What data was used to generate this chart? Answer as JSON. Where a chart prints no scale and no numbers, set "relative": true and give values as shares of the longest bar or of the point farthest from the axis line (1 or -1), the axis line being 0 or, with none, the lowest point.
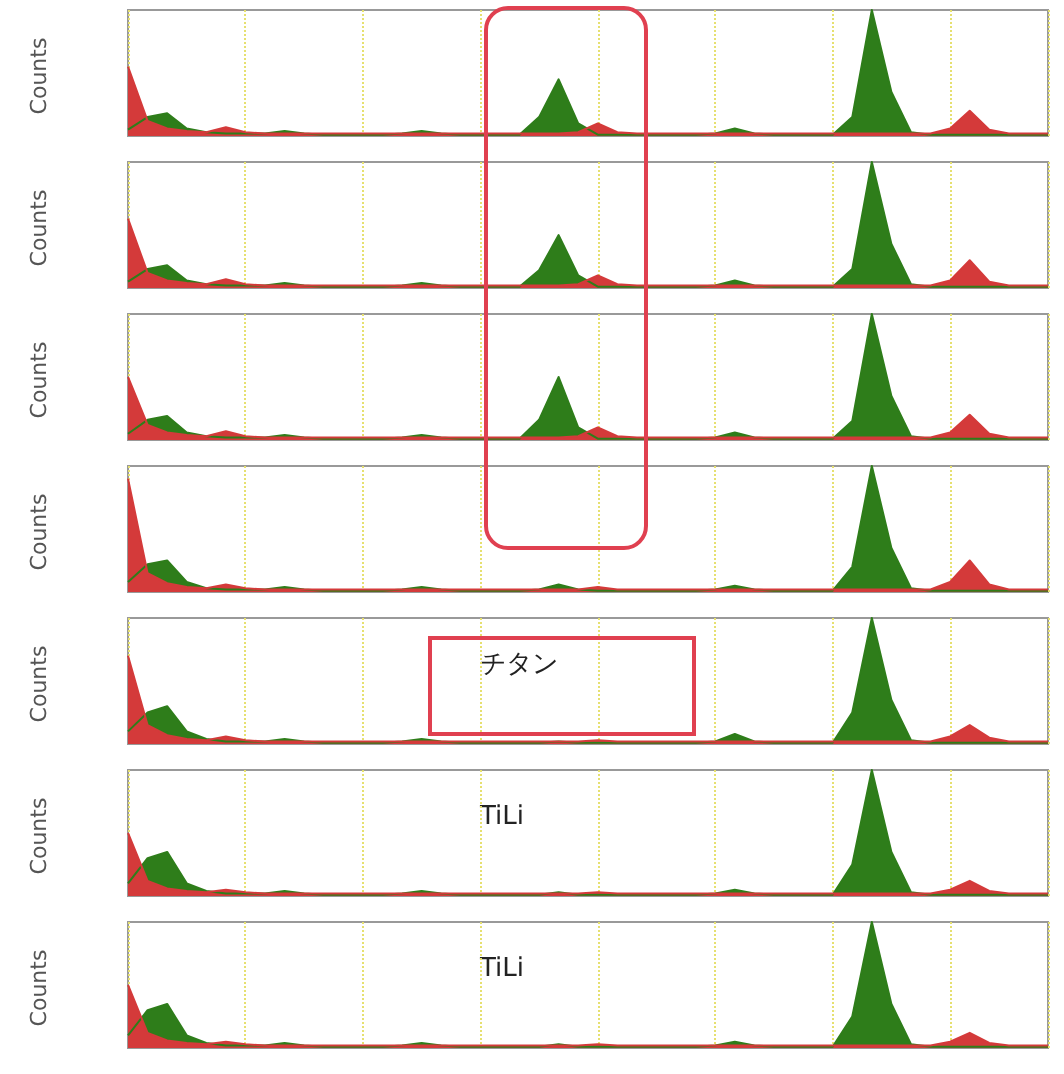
{
  "chart_data": [
    {
      "type": "area",
      "relative": true,
      "ylabel": "Counts",
      "grid": "x",
      "categories": [
        null,
        null,
        null,
        null,
        null,
        null,
        null,
        null,
        null,
        null,
        null,
        null,
        null,
        null,
        null,
        null,
        null,
        null,
        null,
        null,
        null,
        null,
        null,
        null,
        null,
        null,
        null,
        null,
        null,
        null,
        null,
        null,
        null,
        null,
        null,
        null,
        null,
        null,
        null,
        null,
        null,
        null,
        null,
        null,
        null,
        null,
        null,
        null
      ],
      "series": [
        {
          "color": "#2e7d1a",
          "values": [
            0.05,
            0.15,
            0.18,
            0.06,
            0.03,
            0.02,
            0.02,
            0.02,
            0.04,
            0.02,
            0.01,
            0.01,
            0.01,
            0.01,
            0.02,
            0.04,
            0.02,
            0.01,
            0.01,
            0.01,
            0.01,
            0.15,
            0.45,
            0.1,
            0.01,
            0.01,
            0.01,
            0.01,
            0.01,
            0.01,
            0.02,
            0.06,
            0.02,
            0.01,
            0.01,
            0.01,
            0.01,
            0.15,
            1,
            0.35,
            0.03,
            0.01,
            0.01,
            0.01,
            0.01,
            0.01,
            0.01,
            0.01
          ]
        },
        {
          "color": "#d43a3a",
          "values": [
            0.55,
            0.12,
            0.06,
            0.04,
            0.03,
            0.07,
            0.03,
            0.02,
            0.02,
            0.02,
            0.02,
            0.02,
            0.02,
            0.02,
            0.02,
            0.02,
            0.02,
            0.02,
            0.02,
            0.02,
            0.02,
            0.02,
            0.02,
            0.03,
            0.1,
            0.03,
            0.02,
            0.02,
            0.02,
            0.02,
            0.02,
            0.02,
            0.02,
            0.02,
            0.02,
            0.02,
            0.02,
            0.02,
            0.02,
            0.02,
            0.02,
            0.02,
            0.06,
            0.2,
            0.05,
            0.02,
            0.02,
            0.02
          ]
        }
      ]
    },
    {
      "type": "area",
      "relative": true,
      "ylabel": "Counts",
      "grid": "x",
      "categories": [
        null,
        null,
        null,
        null,
        null,
        null,
        null,
        null,
        null,
        null,
        null,
        null,
        null,
        null,
        null,
        null,
        null,
        null,
        null,
        null,
        null,
        null,
        null,
        null,
        null,
        null,
        null,
        null,
        null,
        null,
        null,
        null,
        null,
        null,
        null,
        null,
        null,
        null,
        null,
        null,
        null,
        null,
        null,
        null,
        null,
        null,
        null,
        null
      ],
      "series": [
        {
          "color": "#2e7d1a",
          "values": [
            0.05,
            0.15,
            0.18,
            0.06,
            0.03,
            0.02,
            0.02,
            0.02,
            0.04,
            0.02,
            0.01,
            0.01,
            0.01,
            0.01,
            0.02,
            0.04,
            0.02,
            0.01,
            0.01,
            0.01,
            0.01,
            0.14,
            0.42,
            0.1,
            0.01,
            0.01,
            0.01,
            0.01,
            0.01,
            0.01,
            0.02,
            0.06,
            0.02,
            0.01,
            0.01,
            0.01,
            0.01,
            0.15,
            1,
            0.35,
            0.03,
            0.01,
            0.01,
            0.01,
            0.01,
            0.01,
            0.01,
            0.01
          ]
        },
        {
          "color": "#d43a3a",
          "values": [
            0.55,
            0.12,
            0.06,
            0.04,
            0.03,
            0.07,
            0.03,
            0.02,
            0.02,
            0.02,
            0.02,
            0.02,
            0.02,
            0.02,
            0.02,
            0.02,
            0.02,
            0.02,
            0.02,
            0.02,
            0.02,
            0.02,
            0.02,
            0.03,
            0.1,
            0.03,
            0.02,
            0.02,
            0.02,
            0.02,
            0.02,
            0.02,
            0.02,
            0.02,
            0.02,
            0.02,
            0.02,
            0.02,
            0.02,
            0.02,
            0.02,
            0.02,
            0.06,
            0.22,
            0.05,
            0.02,
            0.02,
            0.02
          ]
        }
      ]
    },
    {
      "type": "area",
      "relative": true,
      "ylabel": "Counts",
      "grid": "x",
      "categories": [
        null,
        null,
        null,
        null,
        null,
        null,
        null,
        null,
        null,
        null,
        null,
        null,
        null,
        null,
        null,
        null,
        null,
        null,
        null,
        null,
        null,
        null,
        null,
        null,
        null,
        null,
        null,
        null,
        null,
        null,
        null,
        null,
        null,
        null,
        null,
        null,
        null,
        null,
        null,
        null,
        null,
        null,
        null,
        null,
        null,
        null,
        null,
        null
      ],
      "series": [
        {
          "color": "#2e7d1a",
          "values": [
            0.05,
            0.16,
            0.19,
            0.06,
            0.03,
            0.02,
            0.02,
            0.02,
            0.04,
            0.02,
            0.01,
            0.01,
            0.01,
            0.01,
            0.02,
            0.04,
            0.02,
            0.01,
            0.01,
            0.01,
            0.01,
            0.16,
            0.5,
            0.1,
            0.01,
            0.01,
            0.01,
            0.01,
            0.01,
            0.01,
            0.02,
            0.06,
            0.02,
            0.01,
            0.01,
            0.01,
            0.01,
            0.15,
            1,
            0.35,
            0.03,
            0.01,
            0.01,
            0.01,
            0.01,
            0.01,
            0.01,
            0.01
          ]
        },
        {
          "color": "#d43a3a",
          "values": [
            0.5,
            0.12,
            0.06,
            0.04,
            0.03,
            0.07,
            0.03,
            0.02,
            0.02,
            0.02,
            0.02,
            0.02,
            0.02,
            0.02,
            0.02,
            0.02,
            0.02,
            0.02,
            0.02,
            0.02,
            0.02,
            0.02,
            0.02,
            0.03,
            0.1,
            0.03,
            0.02,
            0.02,
            0.02,
            0.02,
            0.02,
            0.02,
            0.02,
            0.02,
            0.02,
            0.02,
            0.02,
            0.02,
            0.02,
            0.02,
            0.02,
            0.02,
            0.06,
            0.2,
            0.05,
            0.02,
            0.02,
            0.02
          ]
        }
      ]
    },
    {
      "type": "area",
      "relative": true,
      "ylabel": "Counts",
      "grid": "x",
      "categories": [
        null,
        null,
        null,
        null,
        null,
        null,
        null,
        null,
        null,
        null,
        null,
        null,
        null,
        null,
        null,
        null,
        null,
        null,
        null,
        null,
        null,
        null,
        null,
        null,
        null,
        null,
        null,
        null,
        null,
        null,
        null,
        null,
        null,
        null,
        null,
        null,
        null,
        null,
        null,
        null,
        null,
        null,
        null,
        null,
        null,
        null,
        null,
        null
      ],
      "series": [
        {
          "color": "#2e7d1a",
          "values": [
            0.08,
            0.22,
            0.25,
            0.08,
            0.03,
            0.02,
            0.02,
            0.02,
            0.04,
            0.02,
            0.01,
            0.01,
            0.01,
            0.01,
            0.02,
            0.04,
            0.02,
            0.01,
            0.01,
            0.01,
            0.01,
            0.02,
            0.06,
            0.02,
            0.01,
            0.01,
            0.01,
            0.01,
            0.01,
            0.01,
            0.02,
            0.05,
            0.02,
            0.01,
            0.01,
            0.01,
            0.01,
            0.2,
            1,
            0.35,
            0.03,
            0.01,
            0.01,
            0.01,
            0.01,
            0.01,
            0.01,
            0.01
          ]
        },
        {
          "color": "#d43a3a",
          "values": [
            0.9,
            0.15,
            0.07,
            0.04,
            0.03,
            0.06,
            0.03,
            0.02,
            0.02,
            0.02,
            0.02,
            0.02,
            0.02,
            0.02,
            0.02,
            0.02,
            0.02,
            0.02,
            0.02,
            0.02,
            0.02,
            0.02,
            0.02,
            0.02,
            0.04,
            0.02,
            0.02,
            0.02,
            0.02,
            0.02,
            0.02,
            0.02,
            0.02,
            0.02,
            0.02,
            0.02,
            0.02,
            0.02,
            0.02,
            0.02,
            0.02,
            0.02,
            0.08,
            0.25,
            0.06,
            0.02,
            0.02,
            0.02
          ]
        }
      ]
    },
    {
      "type": "area",
      "relative": true,
      "ylabel": "Counts",
      "grid": "x",
      "annotations": [
        "チタン"
      ],
      "categories": [
        null,
        null,
        null,
        null,
        null,
        null,
        null,
        null,
        null,
        null,
        null,
        null,
        null,
        null,
        null,
        null,
        null,
        null,
        null,
        null,
        null,
        null,
        null,
        null,
        null,
        null,
        null,
        null,
        null,
        null,
        null,
        null,
        null,
        null,
        null,
        null,
        null,
        null,
        null,
        null,
        null,
        null,
        null,
        null,
        null,
        null,
        null,
        null
      ],
      "series": [
        {
          "color": "#2e7d1a",
          "values": [
            0.1,
            0.25,
            0.3,
            0.1,
            0.04,
            0.02,
            0.02,
            0.02,
            0.04,
            0.02,
            0.01,
            0.01,
            0.01,
            0.01,
            0.02,
            0.04,
            0.02,
            0.01,
            0.01,
            0.01,
            0.01,
            0.01,
            0.02,
            0.01,
            0.01,
            0.01,
            0.01,
            0.01,
            0.01,
            0.01,
            0.02,
            0.08,
            0.02,
            0.01,
            0.01,
            0.01,
            0.01,
            0.25,
            1,
            0.35,
            0.03,
            0.01,
            0.01,
            0.01,
            0.01,
            0.01,
            0.01,
            0.01
          ]
        },
        {
          "color": "#d43a3a",
          "values": [
            0.7,
            0.15,
            0.07,
            0.04,
            0.03,
            0.06,
            0.03,
            0.02,
            0.02,
            0.02,
            0.02,
            0.02,
            0.02,
            0.02,
            0.02,
            0.02,
            0.02,
            0.02,
            0.02,
            0.02,
            0.02,
            0.02,
            0.02,
            0.02,
            0.03,
            0.02,
            0.02,
            0.02,
            0.02,
            0.02,
            0.02,
            0.02,
            0.02,
            0.02,
            0.02,
            0.02,
            0.02,
            0.02,
            0.02,
            0.02,
            0.02,
            0.02,
            0.06,
            0.15,
            0.05,
            0.02,
            0.02,
            0.02
          ]
        }
      ]
    },
    {
      "type": "area",
      "relative": true,
      "ylabel": "Counts",
      "grid": "x",
      "annotations": [
        "TiLi"
      ],
      "categories": [
        null,
        null,
        null,
        null,
        null,
        null,
        null,
        null,
        null,
        null,
        null,
        null,
        null,
        null,
        null,
        null,
        null,
        null,
        null,
        null,
        null,
        null,
        null,
        null,
        null,
        null,
        null,
        null,
        null,
        null,
        null,
        null,
        null,
        null,
        null,
        null,
        null,
        null,
        null,
        null,
        null,
        null,
        null,
        null,
        null,
        null,
        null,
        null
      ],
      "series": [
        {
          "color": "#2e7d1a",
          "values": [
            0.1,
            0.3,
            0.35,
            0.1,
            0.04,
            0.02,
            0.02,
            0.02,
            0.04,
            0.02,
            0.01,
            0.01,
            0.01,
            0.01,
            0.02,
            0.04,
            0.02,
            0.01,
            0.01,
            0.01,
            0.01,
            0.01,
            0.03,
            0.01,
            0.01,
            0.01,
            0.01,
            0.01,
            0.01,
            0.01,
            0.02,
            0.05,
            0.02,
            0.01,
            0.01,
            0.01,
            0.01,
            0.25,
            1,
            0.35,
            0.03,
            0.01,
            0.01,
            0.01,
            0.01,
            0.01,
            0.01,
            0.01
          ]
        },
        {
          "color": "#d43a3a",
          "values": [
            0.5,
            0.12,
            0.06,
            0.04,
            0.03,
            0.05,
            0.03,
            0.02,
            0.02,
            0.02,
            0.02,
            0.02,
            0.02,
            0.02,
            0.02,
            0.02,
            0.02,
            0.02,
            0.02,
            0.02,
            0.02,
            0.02,
            0.02,
            0.02,
            0.03,
            0.02,
            0.02,
            0.02,
            0.02,
            0.02,
            0.02,
            0.02,
            0.02,
            0.02,
            0.02,
            0.02,
            0.02,
            0.02,
            0.02,
            0.02,
            0.02,
            0.02,
            0.05,
            0.12,
            0.04,
            0.02,
            0.02,
            0.02
          ]
        }
      ]
    },
    {
      "type": "area",
      "relative": true,
      "ylabel": "Counts",
      "grid": "x",
      "annotations": [
        "TiLi"
      ],
      "categories": [
        null,
        null,
        null,
        null,
        null,
        null,
        null,
        null,
        null,
        null,
        null,
        null,
        null,
        null,
        null,
        null,
        null,
        null,
        null,
        null,
        null,
        null,
        null,
        null,
        null,
        null,
        null,
        null,
        null,
        null,
        null,
        null,
        null,
        null,
        null,
        null,
        null,
        null,
        null,
        null,
        null,
        null,
        null,
        null,
        null,
        null,
        null,
        null
      ],
      "series": [
        {
          "color": "#2e7d1a",
          "values": [
            0.1,
            0.3,
            0.35,
            0.1,
            0.04,
            0.02,
            0.02,
            0.02,
            0.04,
            0.02,
            0.01,
            0.01,
            0.01,
            0.01,
            0.02,
            0.04,
            0.02,
            0.01,
            0.01,
            0.01,
            0.01,
            0.01,
            0.03,
            0.01,
            0.01,
            0.01,
            0.01,
            0.01,
            0.01,
            0.01,
            0.02,
            0.05,
            0.02,
            0.01,
            0.01,
            0.01,
            0.01,
            0.25,
            1,
            0.35,
            0.03,
            0.01,
            0.01,
            0.01,
            0.01,
            0.01,
            0.01,
            0.01
          ]
        },
        {
          "color": "#d43a3a",
          "values": [
            0.5,
            0.12,
            0.06,
            0.04,
            0.03,
            0.05,
            0.03,
            0.02,
            0.02,
            0.02,
            0.02,
            0.02,
            0.02,
            0.02,
            0.02,
            0.02,
            0.02,
            0.02,
            0.02,
            0.02,
            0.02,
            0.02,
            0.02,
            0.02,
            0.03,
            0.02,
            0.02,
            0.02,
            0.02,
            0.02,
            0.02,
            0.02,
            0.02,
            0.02,
            0.02,
            0.02,
            0.02,
            0.02,
            0.02,
            0.02,
            0.02,
            0.02,
            0.05,
            0.12,
            0.04,
            0.02,
            0.02,
            0.02
          ]
        }
      ]
    }
  ]
}
